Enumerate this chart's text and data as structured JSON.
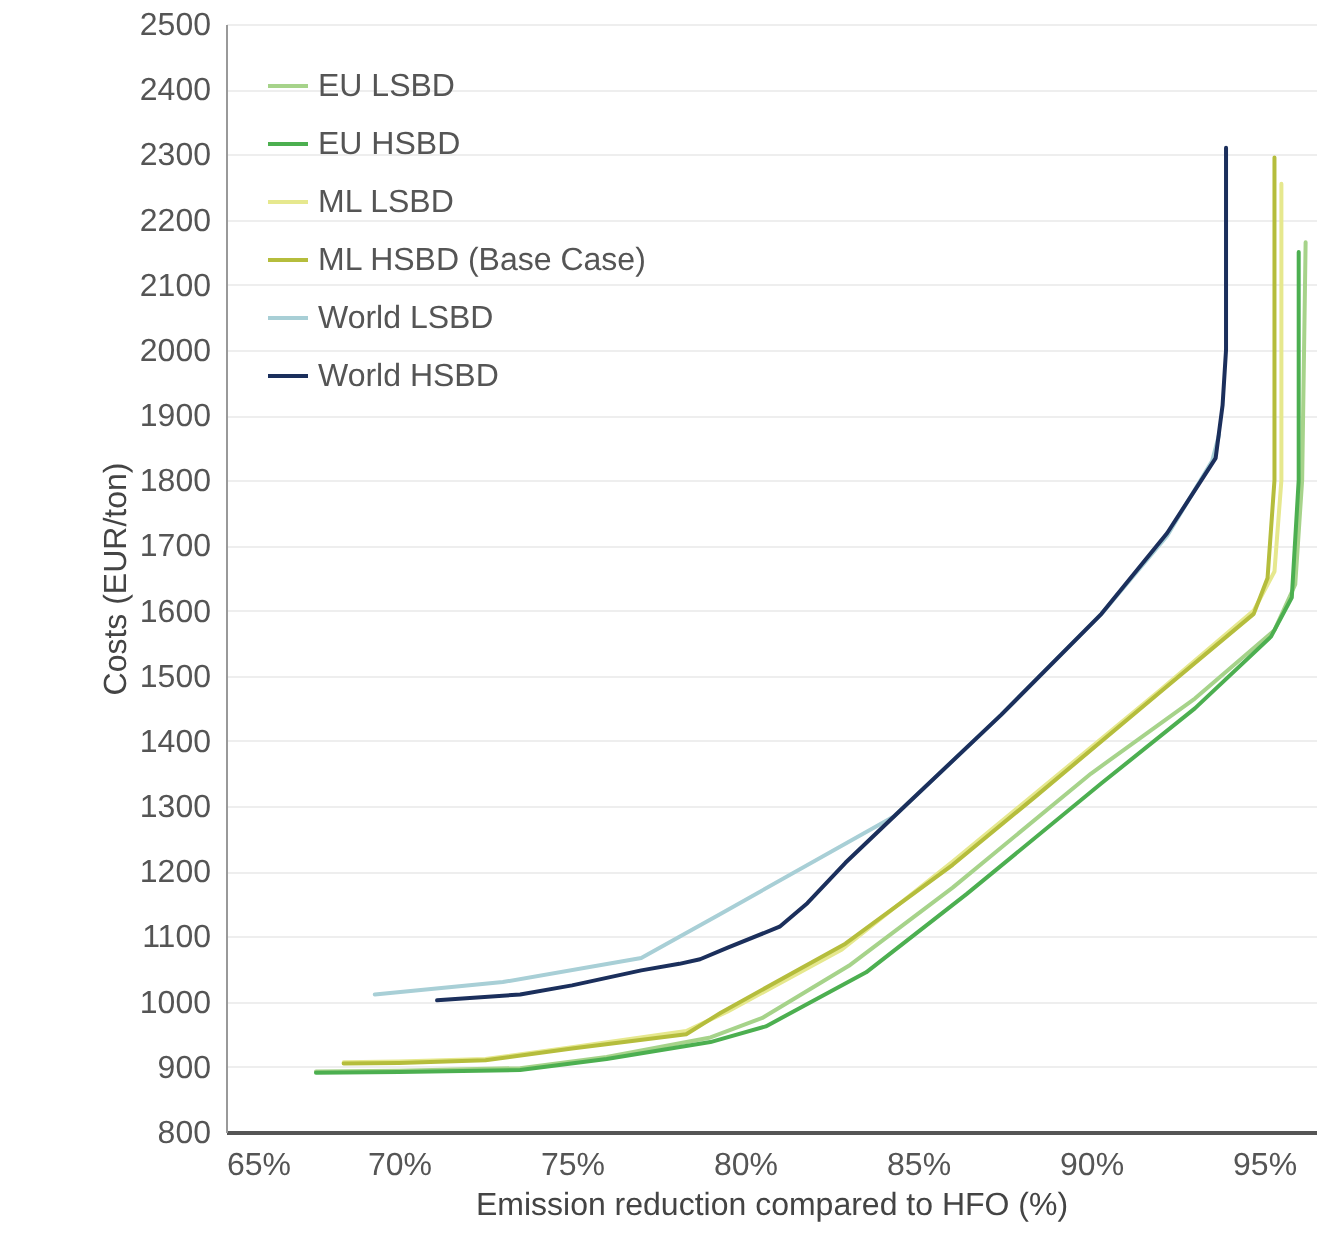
{
  "chart_data": {
    "type": "line",
    "xlabel": "Emission reduction compared to HFO (%)",
    "ylabel": "Costs (EUR/ton)",
    "xlim": [
      65,
      96.5
    ],
    "xticks": [
      {
        "value": 65,
        "label": "65%"
      },
      {
        "value": 70,
        "label": "70%"
      },
      {
        "value": 75,
        "label": "75%"
      },
      {
        "value": 80,
        "label": "80%"
      },
      {
        "value": 85,
        "label": "85%"
      },
      {
        "value": 90,
        "label": "90%"
      },
      {
        "value": 95,
        "label": "95%"
      }
    ],
    "ylim": [
      800,
      2500
    ],
    "yticks": [
      800,
      900,
      1000,
      1100,
      1200,
      1300,
      1400,
      1500,
      1600,
      1700,
      1800,
      1900,
      2000,
      2100,
      2200,
      2300,
      2400,
      2500
    ],
    "grid": "y",
    "legend": "top left",
    "marker": "none",
    "line_style": "solid",
    "series": [
      {
        "name": "EU LSBD",
        "color": "#a6d38a",
        "x": [
          67.6,
          70,
          73.5,
          76,
          79,
          80.5,
          83,
          86,
          90,
          93,
          95.3,
          95.9,
          96.1,
          96.2
        ],
        "values": [
          893,
          894,
          898,
          915,
          945,
          975,
          1055,
          1175,
          1350,
          1465,
          1570,
          1640,
          1800,
          2165
        ]
      },
      {
        "name": "EU HSBD",
        "color": "#4caf50",
        "x": [
          67.6,
          70,
          73.5,
          76,
          79,
          80.6,
          83.5,
          86.4,
          90.3,
          93,
          95.2,
          95.8,
          96,
          96
        ],
        "values": [
          891,
          892,
          895,
          912,
          938,
          962,
          1045,
          1165,
          1335,
          1450,
          1560,
          1620,
          1800,
          2150
        ]
      },
      {
        "name": "ML LSBD",
        "color": "#e6e88e",
        "x": [
          68.4,
          70,
          72.5,
          75,
          78.3,
          79.5,
          82.8,
          86,
          88.4,
          92,
          94.7,
          95.3,
          95.5,
          95.5
        ],
        "values": [
          907,
          908,
          912,
          930,
          955,
          985,
          1080,
          1215,
          1320,
          1478,
          1600,
          1660,
          1800,
          2255
        ]
      },
      {
        "name": "ML HSBD (Base Case)",
        "color": "#b5bd3c",
        "x": [
          68.4,
          70,
          72.5,
          75,
          78.3,
          79.3,
          82.9,
          86,
          88.4,
          92,
          94.7,
          95.1,
          95.3,
          95.3
        ],
        "values": [
          905,
          906,
          910,
          928,
          950,
          983,
          1089,
          1210,
          1315,
          1475,
          1595,
          1650,
          1800,
          2295
        ]
      },
      {
        "name": "World LSBD",
        "color": "#a8cfd6",
        "x": [
          69.3,
          73,
          77,
          79.3,
          84.3,
          87.4,
          90.3,
          92.2,
          93.5,
          93.7
        ],
        "values": [
          1011,
          1030,
          1067,
          1135,
          1284,
          1440,
          1595,
          1715,
          1830,
          1870
        ]
      },
      {
        "name": "World HSBD",
        "color": "#1b2f5c",
        "x": [
          71.1,
          73.5,
          75,
          77,
          78.1,
          78.7,
          79.5,
          81,
          81.8,
          82.9,
          84.5,
          87.4,
          90.3,
          92.2,
          93.6,
          93.8,
          93.9,
          93.9
        ],
        "values": [
          1002,
          1011,
          1025,
          1048,
          1058,
          1065,
          1083,
          1115,
          1151,
          1213,
          1294,
          1440,
          1595,
          1719,
          1834,
          1915,
          2000,
          2310
        ]
      }
    ]
  }
}
